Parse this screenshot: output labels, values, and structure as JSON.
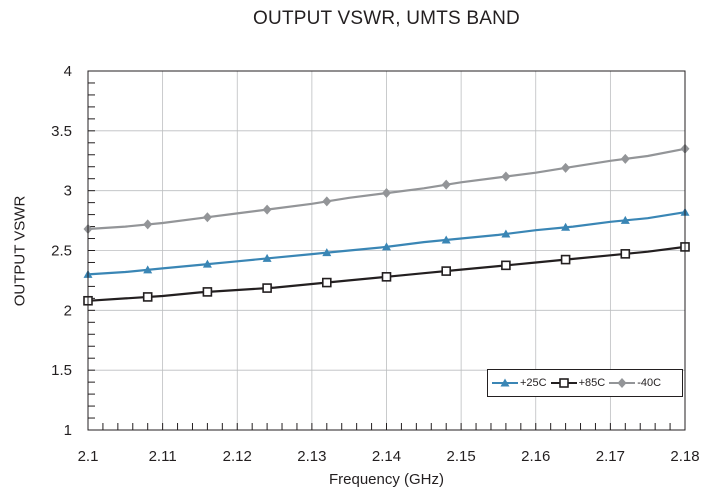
{
  "title": "OUTPUT VSWR, UMTS BAND",
  "chart_data": {
    "type": "line",
    "title": "OUTPUT VSWR, UMTS BAND",
    "xlabel": "Frequency (GHz)",
    "ylabel": "OUTPUT VSWR",
    "xlim": [
      2.1,
      2.18
    ],
    "ylim": [
      1,
      4
    ],
    "x_ticks": [
      "2.1",
      "2.11",
      "2.12",
      "2.13",
      "2.14",
      "2.15",
      "2.16",
      "2.17",
      "2.18"
    ],
    "y_ticks": [
      "1",
      "1.5",
      "2",
      "2.5",
      "3",
      "3.5",
      "4"
    ],
    "grid": true,
    "legend_position": "bottom-right",
    "series": [
      {
        "name": "+25C",
        "color": "#3a86b5",
        "marker": "triangle",
        "x": [
          2.1,
          2.105,
          2.11,
          2.115,
          2.12,
          2.125,
          2.13,
          2.135,
          2.14,
          2.145,
          2.15,
          2.155,
          2.16,
          2.165,
          2.17,
          2.175,
          2.18
        ],
        "y": [
          2.3,
          2.32,
          2.35,
          2.38,
          2.41,
          2.44,
          2.47,
          2.5,
          2.53,
          2.57,
          2.6,
          2.63,
          2.67,
          2.7,
          2.74,
          2.77,
          2.82
        ]
      },
      {
        "name": "+85C",
        "color": "#231f20",
        "marker": "square",
        "x": [
          2.1,
          2.105,
          2.11,
          2.115,
          2.12,
          2.125,
          2.13,
          2.135,
          2.14,
          2.145,
          2.15,
          2.155,
          2.16,
          2.165,
          2.17,
          2.175,
          2.18
        ],
        "y": [
          2.08,
          2.1,
          2.12,
          2.15,
          2.17,
          2.19,
          2.22,
          2.25,
          2.28,
          2.31,
          2.34,
          2.37,
          2.4,
          2.43,
          2.46,
          2.49,
          2.53
        ]
      },
      {
        "name": "-40C",
        "color": "#939598",
        "marker": "diamond",
        "x": [
          2.1,
          2.105,
          2.11,
          2.115,
          2.12,
          2.125,
          2.13,
          2.135,
          2.14,
          2.145,
          2.15,
          2.155,
          2.16,
          2.165,
          2.17,
          2.175,
          2.18
        ],
        "y": [
          2.68,
          2.7,
          2.73,
          2.77,
          2.81,
          2.85,
          2.89,
          2.94,
          2.98,
          3.02,
          3.07,
          3.11,
          3.15,
          3.2,
          3.25,
          3.29,
          3.35
        ]
      }
    ],
    "marker_x": [
      2.1,
      2.108,
      2.116,
      2.124,
      2.132,
      2.14,
      2.148,
      2.156,
      2.164,
      2.172,
      2.18
    ]
  }
}
